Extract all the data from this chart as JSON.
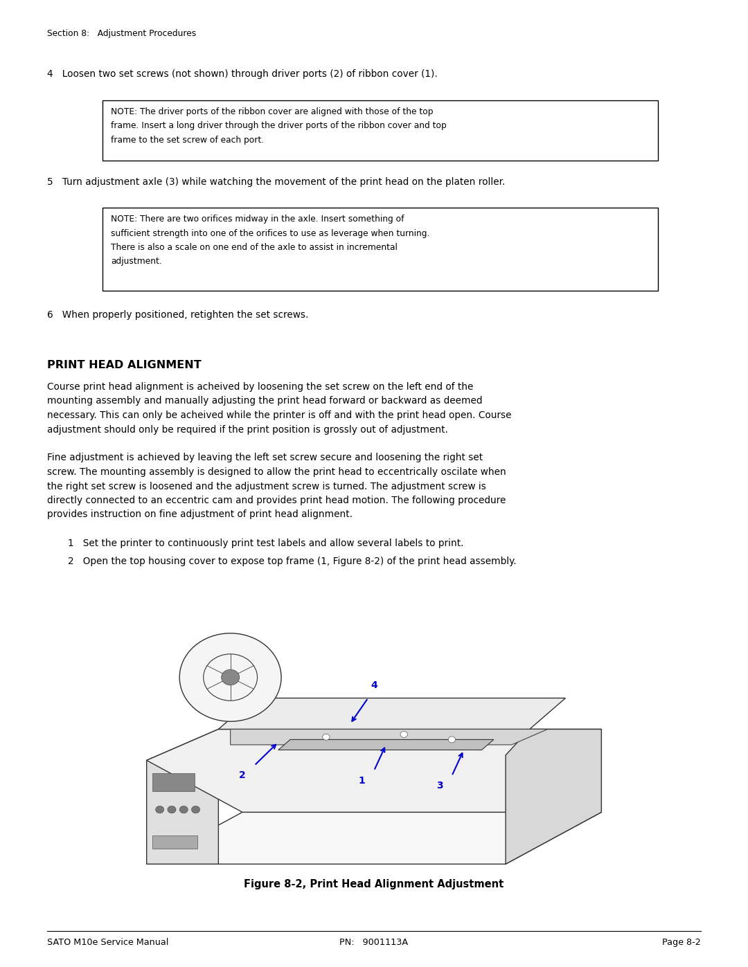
{
  "bg_color": "#ffffff",
  "text_color": "#000000",
  "page_width": 10.8,
  "page_height": 13.97,
  "header_text": "Section 8:   Adjustment Procedures",
  "footer_left": "SATO M10e Service Manual",
  "footer_center": "PN:   9001113A",
  "footer_right": "Page 8-2",
  "step4_text": "4   Loosen two set screws (not shown) through driver ports (2) of ribbon cover (1).",
  "note1_lines": [
    "NOTE: The driver ports of the ribbon cover are aligned with those of the top",
    "frame. Insert a long driver through the driver ports of the ribbon cover and top",
    "frame to the set screw of each port."
  ],
  "step5_text": "5   Turn adjustment axle (3) while watching the movement of the print head on the platen roller.",
  "note2_lines": [
    "NOTE: There are two orifices midway in the axle. Insert something of",
    "sufficient strength into one of the orifices to use as leverage when turning.",
    "There is also a scale on one end of the axle to assist in incremental",
    "adjustment."
  ],
  "step6_text": "6   When properly positioned, retighten the set screws.",
  "section_title": "PRINT HEAD ALIGNMENT",
  "para1_lines": [
    "Course print head alignment is acheived by loosening the set screw on the left end of the",
    "mounting assembly and manually adjusting the print head forward or backward as deemed",
    "necessary. This can only be acheived while the printer is off and with the print head open. Course",
    "adjustment should only be required if the print position is grossly out of adjustment."
  ],
  "para2_lines": [
    "Fine adjustment is achieved by leaving the left set screw secure and loosening the right set",
    "screw. The mounting assembly is designed to allow the print head to eccentrically oscilate when",
    "the right set screw is loosened and the adjustment screw is turned. The adjustment screw is",
    "directly connected to an eccentric cam and provides print head motion. The following procedure",
    "provides instruction on fine adjustment of print head alignment."
  ],
  "step1_text": "1   Set the printer to continuously print test labels and allow several labels to print.",
  "step2_text": "2   Open the top housing cover to expose top frame (1, Figure 8-2) of the print head assembly.",
  "figure_caption": "Figure 8-2, Print Head Alignment Adjustment",
  "label_color": "#0000cc"
}
